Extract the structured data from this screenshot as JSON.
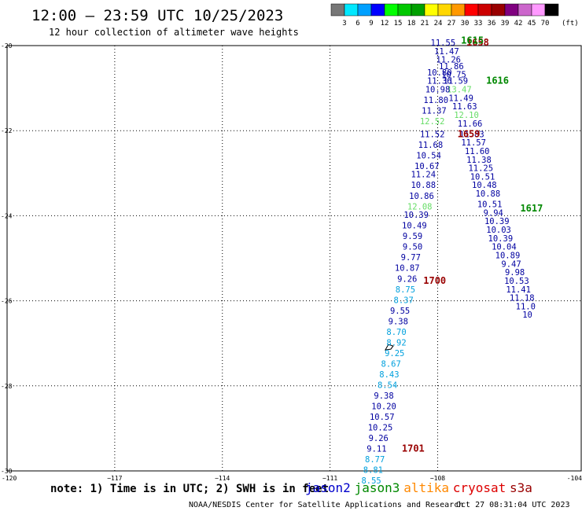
{
  "header": {
    "title": "12:00 – 23:59 UTC 10/25/2023",
    "subtitle": "12 hour collection of altimeter wave heights"
  },
  "colorbar": {
    "colors": [
      "#777777",
      "#00e8ff",
      "#00a0ff",
      "#0000ff",
      "#00ff00",
      "#00c800",
      "#00a000",
      "#ffff00",
      "#ffd700",
      "#ff9900",
      "#ff0000",
      "#cc0000",
      "#990000",
      "#800080",
      "#cc66cc",
      "#ff99ff",
      "#000000"
    ],
    "labels": [
      "3",
      "6",
      "9",
      "12",
      "15",
      "18",
      "21",
      "24",
      "27",
      "30",
      "33",
      "36",
      "39",
      "42",
      "45",
      "70"
    ],
    "unit": "(ft)"
  },
  "footer": {
    "note": "note: 1) Time is in UTC; 2) SWH is in feet",
    "credit": "NOAA/NESDIS Center for Satellite Applications and Research",
    "timestamp": "Oct 27 08:31:04 UTC 2023",
    "missions": [
      {
        "name": "jason2",
        "color": "#0000cc"
      },
      {
        "name": "jason3",
        "color": "#008800"
      },
      {
        "name": "altika",
        "color": "#ff8800"
      },
      {
        "name": "cryosat",
        "color": "#dd0000"
      },
      {
        "name": "s3a",
        "color": "#990000"
      }
    ]
  },
  "chart_data": {
    "type": "scatter",
    "xlim": [
      -120,
      -104
    ],
    "ylim": [
      -30,
      -20
    ],
    "x_ticks": [
      {
        "v": -120,
        "label": "-120"
      },
      {
        "v": -117,
        "label": "−117"
      },
      {
        "v": -114,
        "label": "−114"
      },
      {
        "v": -111,
        "label": "−111"
      },
      {
        "v": -108,
        "label": "−108"
      },
      {
        "v": -104,
        "label": "-104"
      }
    ],
    "y_ticks": [
      {
        "v": -20,
        "label": "-20"
      },
      {
        "v": -22,
        "label": "-22"
      },
      {
        "v": -24,
        "label": "-24"
      },
      {
        "v": -26,
        "label": "-26"
      },
      {
        "v": -28,
        "label": "-28"
      },
      {
        "v": -30,
        "label": "-30"
      }
    ],
    "grid": true,
    "swh_points": [
      {
        "lon": -107.85,
        "lat": -20.0,
        "v": "11.55",
        "c": "#0000a0"
      },
      {
        "lon": -107.75,
        "lat": -20.2,
        "v": "11.47",
        "c": "#0000a0"
      },
      {
        "lon": -107.7,
        "lat": -20.4,
        "v": "11.26",
        "c": "#0000a0"
      },
      {
        "lon": -107.62,
        "lat": -20.55,
        "v": "11.86",
        "c": "#0000a0"
      },
      {
        "lon": -107.95,
        "lat": -20.7,
        "v": "10.80",
        "c": "#0000a0"
      },
      {
        "lon": -107.55,
        "lat": -20.75,
        "v": "10.75",
        "c": "#0000a0"
      },
      {
        "lon": -107.95,
        "lat": -20.9,
        "v": "11.36",
        "c": "#0000a0"
      },
      {
        "lon": -107.5,
        "lat": -20.9,
        "v": "11.59",
        "c": "#0000a0"
      },
      {
        "lon": -107.4,
        "lat": -21.1,
        "v": "13.47",
        "c": "#66dd66"
      },
      {
        "lon": -108.0,
        "lat": -21.1,
        "v": "10.98",
        "c": "#0000a0"
      },
      {
        "lon": -107.35,
        "lat": -21.3,
        "v": "11.49",
        "c": "#0000a0"
      },
      {
        "lon": -108.05,
        "lat": -21.35,
        "v": "11.80",
        "c": "#0000a0"
      },
      {
        "lon": -107.25,
        "lat": -21.5,
        "v": "11.63",
        "c": "#0000a0"
      },
      {
        "lon": -108.1,
        "lat": -21.6,
        "v": "11.37",
        "c": "#0000a0"
      },
      {
        "lon": -107.2,
        "lat": -21.7,
        "v": "12.10",
        "c": "#66dd66"
      },
      {
        "lon": -108.15,
        "lat": -21.85,
        "v": "12.52",
        "c": "#66dd66"
      },
      {
        "lon": -107.1,
        "lat": -21.9,
        "v": "11.66",
        "c": "#0000a0"
      },
      {
        "lon": -108.15,
        "lat": -22.15,
        "v": "11.52",
        "c": "#0000a0"
      },
      {
        "lon": -107.05,
        "lat": -22.15,
        "v": "11.83",
        "c": "#0000a0"
      },
      {
        "lon": -107.0,
        "lat": -22.35,
        "v": "11.57",
        "c": "#0000a0"
      },
      {
        "lon": -108.2,
        "lat": -22.4,
        "v": "11.68",
        "c": "#0000a0"
      },
      {
        "lon": -106.9,
        "lat": -22.55,
        "v": "11.60",
        "c": "#0000a0"
      },
      {
        "lon": -108.25,
        "lat": -22.65,
        "v": "10.54",
        "c": "#0000a0"
      },
      {
        "lon": -106.85,
        "lat": -22.75,
        "v": "11.38",
        "c": "#0000a0"
      },
      {
        "lon": -108.3,
        "lat": -22.9,
        "v": "10.67",
        "c": "#0000a0"
      },
      {
        "lon": -106.8,
        "lat": -22.95,
        "v": "11.25",
        "c": "#0000a0"
      },
      {
        "lon": -108.4,
        "lat": -23.1,
        "v": "11.24",
        "c": "#0000a0"
      },
      {
        "lon": -106.75,
        "lat": -23.15,
        "v": "10.51",
        "c": "#0000a0"
      },
      {
        "lon": -108.4,
        "lat": -23.35,
        "v": "10.88",
        "c": "#0000a0"
      },
      {
        "lon": -106.7,
        "lat": -23.35,
        "v": "10.48",
        "c": "#0000a0"
      },
      {
        "lon": -108.45,
        "lat": -23.6,
        "v": "10.86",
        "c": "#0000a0"
      },
      {
        "lon": -106.6,
        "lat": -23.55,
        "v": "10.88",
        "c": "#0000a0"
      },
      {
        "lon": -106.55,
        "lat": -23.8,
        "v": "10.51",
        "c": "#0000a0"
      },
      {
        "lon": -108.5,
        "lat": -23.85,
        "v": "12.08",
        "c": "#66dd66"
      },
      {
        "lon": -106.45,
        "lat": -24.0,
        "v": "9.94",
        "c": "#0000a0"
      },
      {
        "lon": -108.6,
        "lat": -24.05,
        "v": "10.39",
        "c": "#0000a0"
      },
      {
        "lon": -106.35,
        "lat": -24.2,
        "v": "10.39",
        "c": "#0000a0"
      },
      {
        "lon": -108.65,
        "lat": -24.3,
        "v": "10.49",
        "c": "#0000a0"
      },
      {
        "lon": -106.3,
        "lat": -24.4,
        "v": "10.03",
        "c": "#0000a0"
      },
      {
        "lon": -108.7,
        "lat": -24.55,
        "v": "9.59",
        "c": "#0000a0"
      },
      {
        "lon": -106.25,
        "lat": -24.6,
        "v": "10.39",
        "c": "#0000a0"
      },
      {
        "lon": -108.7,
        "lat": -24.8,
        "v": "9.50",
        "c": "#0000a0"
      },
      {
        "lon": -106.15,
        "lat": -24.8,
        "v": "10.04",
        "c": "#0000a0"
      },
      {
        "lon": -106.05,
        "lat": -25.0,
        "v": "10.89",
        "c": "#0000a0"
      },
      {
        "lon": -108.75,
        "lat": -25.05,
        "v": "9.77",
        "c": "#0000a0"
      },
      {
        "lon": -105.95,
        "lat": -25.2,
        "v": "9.47",
        "c": "#0000a0"
      },
      {
        "lon": -108.85,
        "lat": -25.3,
        "v": "10.87",
        "c": "#0000a0"
      },
      {
        "lon": -105.85,
        "lat": -25.4,
        "v": "9.98",
        "c": "#0000a0"
      },
      {
        "lon": -108.85,
        "lat": -25.55,
        "v": "9.26",
        "c": "#0000a0"
      },
      {
        "lon": -105.8,
        "lat": -25.6,
        "v": "10.53",
        "c": "#0000a0"
      },
      {
        "lon": -105.75,
        "lat": -25.8,
        "v": "11.41",
        "c": "#0000a0"
      },
      {
        "lon": -108.9,
        "lat": -25.8,
        "v": "8.75",
        "c": "#00a0dd"
      },
      {
        "lon": -105.65,
        "lat": -26.0,
        "v": "11.18",
        "c": "#0000a0"
      },
      {
        "lon": -108.95,
        "lat": -26.05,
        "v": "8.37",
        "c": "#00a0dd"
      },
      {
        "lon": -105.55,
        "lat": -26.2,
        "v": "11.0",
        "c": "#0000a0"
      },
      {
        "lon": -109.05,
        "lat": -26.3,
        "v": "9.55",
        "c": "#0000a0"
      },
      {
        "lon": -105.5,
        "lat": -26.4,
        "v": "10",
        "c": "#0000a0"
      },
      {
        "lon": -109.1,
        "lat": -26.55,
        "v": "9.38",
        "c": "#0000a0"
      },
      {
        "lon": -109.15,
        "lat": -26.8,
        "v": "8.70",
        "c": "#00a0dd"
      },
      {
        "lon": -109.15,
        "lat": -27.05,
        "v": "8.92",
        "c": "#00a0dd"
      },
      {
        "lon": -109.2,
        "lat": -27.3,
        "v": "9.25",
        "c": "#00a0dd"
      },
      {
        "lon": -109.3,
        "lat": -27.55,
        "v": "8.67",
        "c": "#00a0dd"
      },
      {
        "lon": -109.35,
        "lat": -27.8,
        "v": "8.43",
        "c": "#00a0dd"
      },
      {
        "lon": -109.4,
        "lat": -28.05,
        "v": "8.54",
        "c": "#00a0dd"
      },
      {
        "lon": -109.5,
        "lat": -28.3,
        "v": "9.38",
        "c": "#0000a0"
      },
      {
        "lon": -109.5,
        "lat": -28.55,
        "v": "10.20",
        "c": "#0000a0"
      },
      {
        "lon": -109.55,
        "lat": -28.8,
        "v": "10.57",
        "c": "#0000a0"
      },
      {
        "lon": -109.6,
        "lat": -29.05,
        "v": "10.25",
        "c": "#0000a0"
      },
      {
        "lon": -109.65,
        "lat": -29.3,
        "v": "9.26",
        "c": "#0000a0"
      },
      {
        "lon": -109.7,
        "lat": -29.55,
        "v": "9.11",
        "c": "#0000a0"
      },
      {
        "lon": -109.75,
        "lat": -29.8,
        "v": "8.77",
        "c": "#00a0dd"
      },
      {
        "lon": -109.8,
        "lat": -30.05,
        "v": "8.81",
        "c": "#00a0dd"
      },
      {
        "lon": -109.85,
        "lat": -30.3,
        "v": "8.55",
        "c": "#00a0dd"
      }
    ],
    "time_labels": [
      {
        "lon": -107.2,
        "lat": -20.0,
        "t": "1658",
        "c": "#990000"
      },
      {
        "lon": -107.35,
        "lat": -19.95,
        "t": "1615",
        "c": "#008800"
      },
      {
        "lon": -106.65,
        "lat": -20.9,
        "t": "1616",
        "c": "#008800"
      },
      {
        "lon": -107.45,
        "lat": -22.15,
        "t": "1659",
        "c": "#990000"
      },
      {
        "lon": -105.7,
        "lat": -23.9,
        "t": "1617",
        "c": "#008800"
      },
      {
        "lon": -108.4,
        "lat": -25.6,
        "t": "1700",
        "c": "#990000"
      },
      {
        "lon": -109.0,
        "lat": -29.55,
        "t": "1701",
        "c": "#990000"
      }
    ],
    "coastline_island": {
      "lon": -109.35,
      "lat": -27.1
    }
  }
}
